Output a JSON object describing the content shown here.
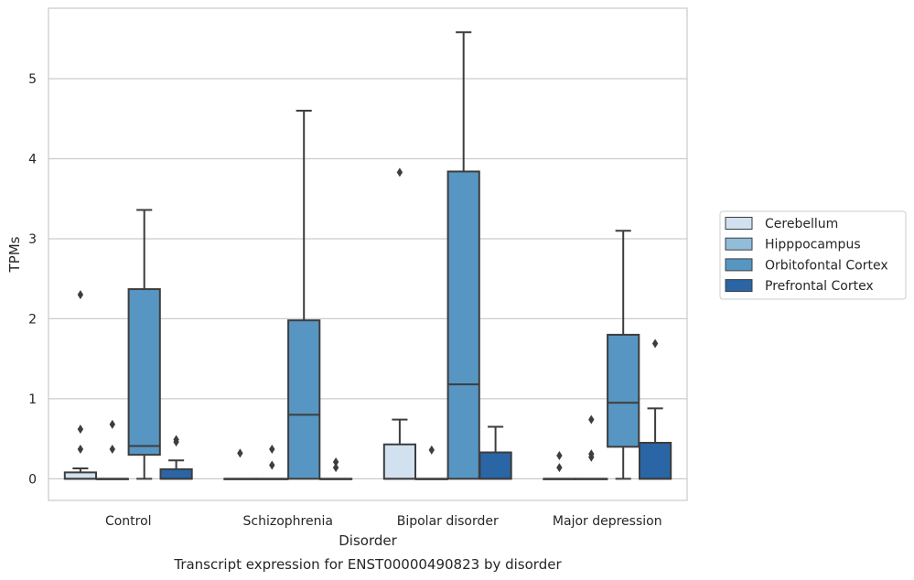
{
  "chart_data": {
    "type": "boxplot",
    "title": "Transcript expression for ENST00000490823 by disorder",
    "xlabel": "Disorder",
    "ylabel": "TPMs",
    "categories": [
      "Control",
      "Schizophrenia",
      "Bipolar disorder",
      "Major depression"
    ],
    "ylim": [
      -0.27,
      5.88
    ],
    "yticks": [
      0,
      1,
      2,
      3,
      4,
      5
    ],
    "grid": "horizontal",
    "legend": {
      "placement": "right",
      "entries": [
        "Cerebellum",
        "Hipppocampus",
        "Orbitofontal Cortex",
        "Prefrontal Cortex"
      ]
    },
    "colors": {
      "Cerebellum": "#d1e1ef",
      "Hipppocampus": "#91bddb",
      "Orbitofontal Cortex": "#5796c2",
      "Prefrontal Cortex": "#2a65a5",
      "edge": "#3d3d3d",
      "grid": "#cccccc"
    },
    "series": [
      {
        "name": "Cerebellum",
        "boxes": [
          {
            "q1": 0,
            "median": 0,
            "q3": 0.08,
            "whislo": 0,
            "whishi": 0.13,
            "fliers": [
              2.3,
              0.62,
              0.37
            ]
          },
          {
            "q1": 0,
            "median": 0,
            "q3": 0,
            "whislo": 0,
            "whishi": 0,
            "fliers": [
              0.32
            ]
          },
          {
            "q1": 0,
            "median": 0,
            "q3": 0.43,
            "whislo": 0,
            "whishi": 0.74,
            "fliers": [
              3.83
            ]
          },
          {
            "q1": 0,
            "median": 0,
            "q3": 0,
            "whislo": 0,
            "whishi": 0,
            "fliers": [
              0.29,
              0.14
            ]
          }
        ]
      },
      {
        "name": "Hipppocampus",
        "boxes": [
          {
            "q1": 0,
            "median": 0,
            "q3": 0,
            "whislo": 0,
            "whishi": 0,
            "fliers": [
              0.68,
              0.37
            ]
          },
          {
            "q1": 0,
            "median": 0,
            "q3": 0,
            "whislo": 0,
            "whishi": 0,
            "fliers": [
              0.37,
              0.17
            ]
          },
          {
            "q1": 0,
            "median": 0,
            "q3": 0,
            "whislo": 0,
            "whishi": 0,
            "fliers": [
              0.36
            ]
          },
          {
            "q1": 0,
            "median": 0,
            "q3": 0,
            "whislo": 0,
            "whishi": 0,
            "fliers": [
              0.74,
              0.31,
              0.27
            ]
          }
        ]
      },
      {
        "name": "Orbitofontal Cortex",
        "boxes": [
          {
            "q1": 0.3,
            "median": 0.41,
            "q3": 2.37,
            "whislo": 0,
            "whishi": 3.36,
            "fliers": []
          },
          {
            "q1": 0,
            "median": 0.8,
            "q3": 1.98,
            "whislo": 0,
            "whishi": 4.6,
            "fliers": []
          },
          {
            "q1": 0,
            "median": 1.18,
            "q3": 3.84,
            "whislo": 0,
            "whishi": 5.58,
            "fliers": []
          },
          {
            "q1": 0.4,
            "median": 0.95,
            "q3": 1.8,
            "whislo": 0,
            "whishi": 3.1,
            "fliers": []
          }
        ]
      },
      {
        "name": "Prefrontal Cortex",
        "boxes": [
          {
            "q1": 0,
            "median": 0,
            "q3": 0.12,
            "whislo": 0,
            "whishi": 0.23,
            "fliers": [
              0.49,
              0.46
            ]
          },
          {
            "q1": 0,
            "median": 0,
            "q3": 0,
            "whislo": 0,
            "whishi": 0,
            "fliers": [
              0.21,
              0.14
            ]
          },
          {
            "q1": 0,
            "median": 0,
            "q3": 0.33,
            "whislo": 0,
            "whishi": 0.65,
            "fliers": []
          },
          {
            "q1": 0,
            "median": 0,
            "q3": 0.45,
            "whislo": 0,
            "whishi": 0.88,
            "fliers": [
              1.69
            ]
          }
        ]
      }
    ]
  }
}
